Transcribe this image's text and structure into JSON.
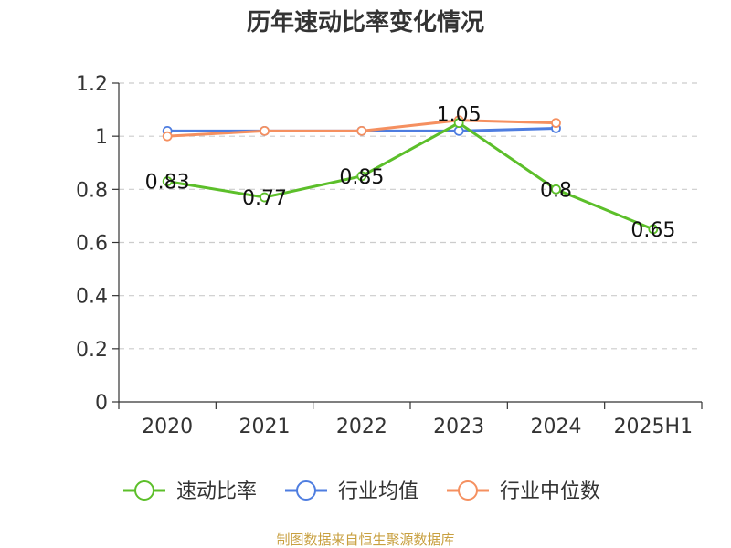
{
  "chart_data": {
    "type": "line",
    "title": "历年速动比率变化情况",
    "categories": [
      "2020",
      "2021",
      "2022",
      "2023",
      "2024",
      "2025H1"
    ],
    "ylim": [
      0,
      1.2
    ],
    "yticks": [
      "0",
      "0.2",
      "0.4",
      "0.6",
      "0.8",
      "1",
      "1.2"
    ],
    "grid": true,
    "legend_position": "bottom",
    "series": [
      {
        "name": "速动比率",
        "color": "#5cbf2a",
        "values": [
          0.83,
          0.77,
          0.85,
          1.05,
          0.8,
          0.65
        ],
        "labels": [
          "0.83",
          "0.77",
          "0.85",
          "1.05",
          "0.8",
          "0.65"
        ]
      },
      {
        "name": "行业均值",
        "color": "#4e7de0",
        "values": [
          1.02,
          1.02,
          1.02,
          1.02,
          1.03,
          null
        ]
      },
      {
        "name": "行业中位数",
        "color": "#f59060",
        "values": [
          1.0,
          1.02,
          1.02,
          1.06,
          1.05,
          null
        ]
      }
    ],
    "source": "制图数据来自恒生聚源数据库"
  }
}
